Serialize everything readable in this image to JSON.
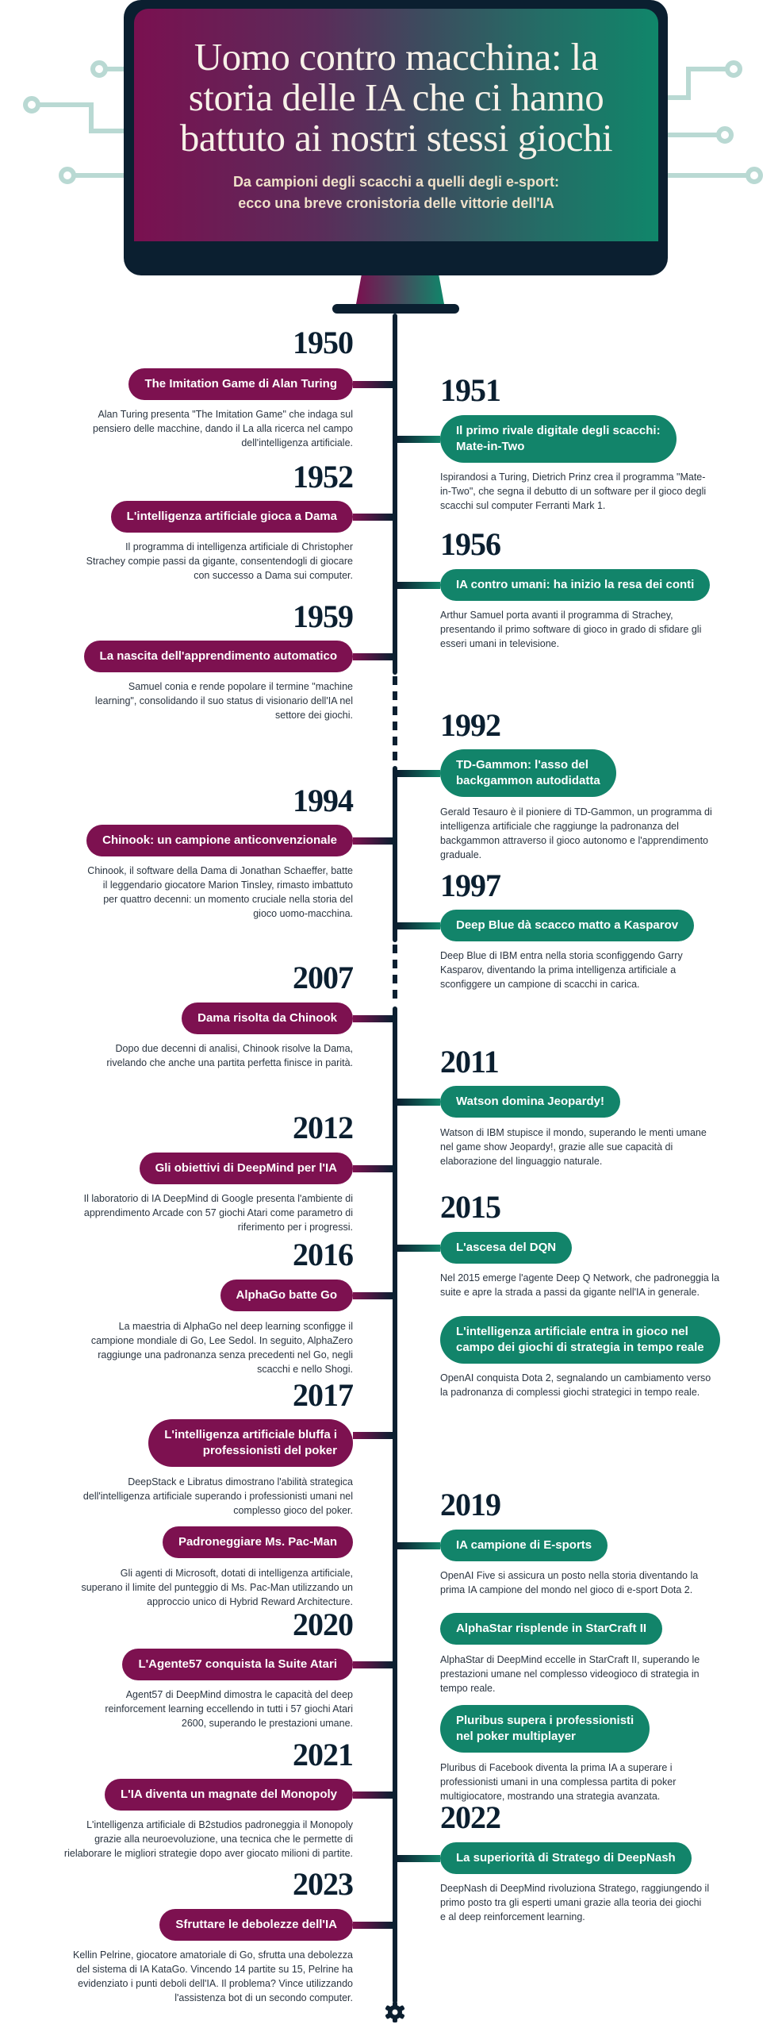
{
  "header": {
    "title": "Uomo contro macchina: la\nstoria delle IA che ci hanno\nbattuto ai nostri stessi giochi",
    "subtitle": "Da campioni degli scacchi a quelli degli e-sport:\necco una breve cronistoria delle vittorie dell'IA"
  },
  "colors": {
    "left_accent": "#7d1150",
    "right_accent": "#12846a",
    "ink": "#0b1f30",
    "circuit": "#b9d9d3"
  },
  "timeline": [
    {
      "year": "1950",
      "title": "The Imitation Game di Alan Turing",
      "text": "Alan Turing presenta \"The Imitation Game\" che indaga sul\npensiero delle macchine, dando il La alla ricerca nel campo\ndell'intelligenza artificiale."
    },
    {
      "year": "1951",
      "title": "Il primo rivale digitale degli scacchi:\nMate-in-Two",
      "text": "Ispirandosi a Turing, Dietrich Prinz crea il programma \"Mate-\nin-Two\", che segna il debutto di un software per il gioco degli\nscacchi sul computer Ferranti Mark 1."
    },
    {
      "year": "1952",
      "title": "L'intelligenza artificiale gioca a Dama",
      "text": "Il programma di intelligenza artificiale di Christopher\nStrachey compie passi da gigante, consentendogli di giocare\ncon successo a Dama sui computer."
    },
    {
      "year": "1956",
      "title": "IA contro umani: ha inizio la resa dei conti",
      "text": "Arthur Samuel porta avanti il programma di Strachey,\npresentando il primo software di gioco in grado di sfidare gli\nesseri umani in televisione."
    },
    {
      "year": "1959",
      "title": "La nascita dell'apprendimento automatico",
      "text": "Samuel conia e rende popolare il termine \"machine\nlearning\", consolidando il suo status di visionario dell'IA nel\nsettore dei giochi."
    },
    {
      "year": "1992",
      "title": "TD-Gammon: l'asso del\nbackgammon autodidatta",
      "text": "Gerald Tesauro è il pioniere di TD-Gammon, un programma di\nintelligenza artificiale che raggiunge la padronanza del\nbackgammon attraverso il gioco autonomo e l'apprendimento\ngraduale."
    },
    {
      "year": "1994",
      "title": "Chinook: un campione anticonvenzionale",
      "text": "Chinook, il software della Dama di Jonathan Schaeffer, batte\nil leggendario giocatore Marion Tinsley, rimasto imbattuto\nper quattro decenni: un momento cruciale nella storia del\ngioco uomo-macchina."
    },
    {
      "year": "1997",
      "title": "Deep Blue dà scacco matto a Kasparov",
      "text": "Deep Blue di IBM entra nella storia sconfiggendo Garry\nKasparov, diventando la prima intelligenza artificiale a\nsconfiggere un campione di scacchi in carica."
    },
    {
      "year": "2007",
      "title": "Dama risolta da Chinook",
      "text": "Dopo due decenni di analisi, Chinook risolve la Dama,\nrivelando che anche una partita perfetta finisce in parità."
    },
    {
      "year": "2011",
      "title": "Watson domina Jeopardy!",
      "text": "Watson di IBM stupisce il mondo, superando le menti umane\nnel game show Jeopardy!, grazie alle sue capacità di\nelaborazione del linguaggio naturale."
    },
    {
      "year": "2012",
      "title": "Gli obiettivi di DeepMind per l'IA",
      "text": "Il laboratorio di IA DeepMind di Google presenta l'ambiente di\napprendimento Arcade con 57 giochi Atari come parametro di\nriferimento per i progressi."
    },
    {
      "year": "2015",
      "title": "L'ascesa del DQN",
      "text": "Nel 2015 emerge l'agente Deep Q Network, che padroneggia la\nsuite e apre la strada a passi da gigante nell'IA in generale."
    },
    {
      "year": "2016",
      "title": "AlphaGo batte Go",
      "text": "La maestria di AlphaGo nel deep learning sconfigge il\ncampione mondiale di Go, Lee Sedol. In seguito, AlphaZero\nraggiunge una padronanza senza precedenti nel Go, negli\nscacchi e nello Shogi."
    },
    {
      "year": "",
      "title": "L'intelligenza artificiale entra in gioco nel\ncampo dei giochi di strategia in tempo reale",
      "text": "OpenAI conquista Dota 2, segnalando un cambiamento verso\nla padronanza di complessi giochi strategici in tempo reale."
    },
    {
      "year": "2017",
      "title": "L'intelligenza artificiale bluffa i\nprofessionisti del poker",
      "text": "DeepStack e Libratus dimostrano l'abilità strategica\ndell'intelligenza artificiale superando i professionisti umani nel\ncomplesso gioco del poker."
    },
    {
      "year": "",
      "title": "Padroneggiare Ms. Pac-Man",
      "text": "Gli agenti di Microsoft, dotati di intelligenza artificiale,\nsuperano il limite del punteggio di Ms. Pac-Man utilizzando un\napproccio unico di Hybrid Reward Architecture."
    },
    {
      "year": "2019",
      "title": "IA campione di E-sports",
      "text": "OpenAI Five si assicura un posto nella storia diventando la\nprima IA campione del mondo nel gioco di e-sport Dota 2."
    },
    {
      "year": "2020",
      "title": "L'Agente57 conquista la Suite Atari",
      "text": "Agent57 di DeepMind dimostra le capacità del deep\nreinforcement learning eccellendo in tutti i 57 giochi Atari\n2600, superando le prestazioni umane."
    },
    {
      "year": "",
      "title": "AlphaStar risplende in StarCraft II",
      "text": "AlphaStar di DeepMind eccelle in StarCraft II, superando le\nprestazioni umane nel complesso videogioco di strategia in\ntempo reale."
    },
    {
      "year": "",
      "title": "Pluribus supera i professionisti\nnel poker multiplayer",
      "text": "Pluribus di Facebook diventa la prima IA a superare i\nprofessionisti umani in una complessa partita di poker\nmultigiocatore, mostrando una strategia avanzata."
    },
    {
      "year": "2021",
      "title": "L'IA diventa un magnate del Monopoly",
      "text": "L'intelligenza artificiale di B2studios padroneggia il Monopoly\ngrazie alla neuroevoluzione, una tecnica che le permette di\nrielaborare le migliori strategie dopo aver giocato milioni di partite."
    },
    {
      "year": "2022",
      "title": "La superiorità di Stratego di DeepNash",
      "text": "DeepNash di DeepMind rivoluziona Stratego, raggiungendo il\nprimo posto tra gli esperti umani grazie alla teoria dei giochi\ne al deep reinforcement learning."
    },
    {
      "year": "2023",
      "title": "Sfruttare le debolezze dell'IA",
      "text": "Kellin Pelrine, giocatore amatoriale di Go, sfrutta una debolezza\ndel sistema di IA KataGo. Vincendo 14 partite su 15, Pelrine ha\nevidenziato i punti deboli dell'IA. Il problema? Vince utilizzando\nl'assistenza bot di un secondo computer."
    }
  ],
  "footer_icon": "gear-icon"
}
